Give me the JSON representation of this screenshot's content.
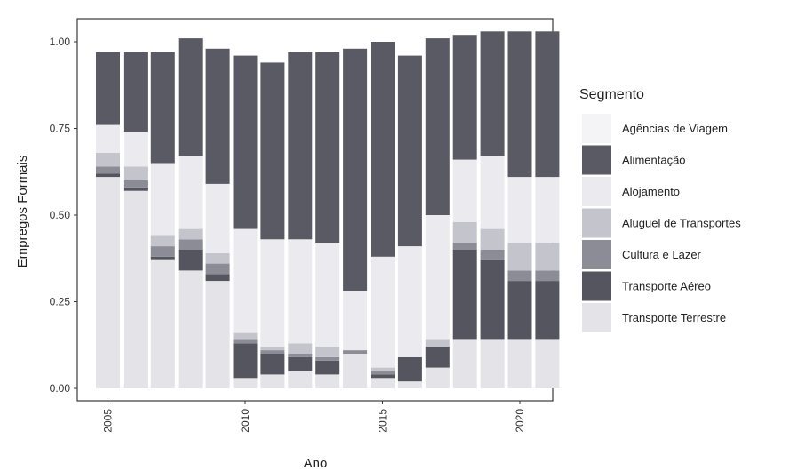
{
  "chart_data": {
    "type": "bar",
    "stacked": true,
    "xlabel": "Ano",
    "ylabel": "Empregos Formais",
    "ylim": [
      0,
      1.04
    ],
    "y_ticks": [
      "0.00",
      "0.25",
      "0.50",
      "0.75",
      "1.00"
    ],
    "x_ticks": [
      "2005",
      "2010",
      "2015",
      "2020"
    ],
    "grid": false,
    "legend_position": "right",
    "legend_title": "Segmento",
    "categories": [
      2005,
      2006,
      2007,
      2008,
      2009,
      2010,
      2011,
      2012,
      2013,
      2014,
      2015,
      2016,
      2017,
      2018,
      2019,
      2020,
      2021
    ],
    "series": [
      {
        "name": "Transporte Terrestre",
        "color": "#e3e3e8",
        "values": [
          0.61,
          0.57,
          0.37,
          0.34,
          0.31,
          0.03,
          0.04,
          0.05,
          0.04,
          0.1,
          0.03,
          0.02,
          0.06,
          0.14,
          0.14,
          0.14,
          0.14
        ]
      },
      {
        "name": "Transporte Aéreo",
        "color": "#55555f",
        "values": [
          0.01,
          0.01,
          0.01,
          0.06,
          0.02,
          0.1,
          0.06,
          0.04,
          0.04,
          0.0,
          0.01,
          0.07,
          0.06,
          0.26,
          0.23,
          0.17,
          0.17
        ]
      },
      {
        "name": "Cultura e Lazer",
        "color": "#8c8c96",
        "values": [
          0.02,
          0.02,
          0.03,
          0.03,
          0.03,
          0.01,
          0.01,
          0.01,
          0.01,
          0.01,
          0.01,
          0.0,
          0.0,
          0.02,
          0.03,
          0.03,
          0.03
        ]
      },
      {
        "name": "Aluguel de Transportes",
        "color": "#c4c4cc",
        "values": [
          0.04,
          0.04,
          0.03,
          0.03,
          0.03,
          0.02,
          0.01,
          0.03,
          0.03,
          0.0,
          0.01,
          0.0,
          0.02,
          0.06,
          0.06,
          0.08,
          0.08
        ]
      },
      {
        "name": "Alojamento",
        "color": "#ebebef",
        "values": [
          0.08,
          0.1,
          0.21,
          0.21,
          0.2,
          0.3,
          0.31,
          0.3,
          0.3,
          0.17,
          0.32,
          0.32,
          0.36,
          0.18,
          0.21,
          0.19,
          0.19
        ]
      },
      {
        "name": "Alimentação",
        "color": "#5a5a64",
        "values": [
          0.21,
          0.23,
          0.32,
          0.34,
          0.39,
          0.5,
          0.51,
          0.54,
          0.55,
          0.7,
          0.62,
          0.55,
          0.51,
          0.36,
          0.36,
          0.42,
          0.42
        ]
      },
      {
        "name": "Agências de Viagem",
        "color": "#f4f4f6",
        "values": [
          0,
          0,
          0,
          0,
          0,
          0,
          0,
          0,
          0,
          0,
          0,
          0,
          0,
          0,
          0,
          0,
          0
        ]
      }
    ],
    "legend_order": [
      "Agências de Viagem",
      "Alimentação",
      "Alojamento",
      "Aluguel de Transportes",
      "Cultura e Lazer",
      "Transporte Aéreo",
      "Transporte Terrestre"
    ]
  }
}
